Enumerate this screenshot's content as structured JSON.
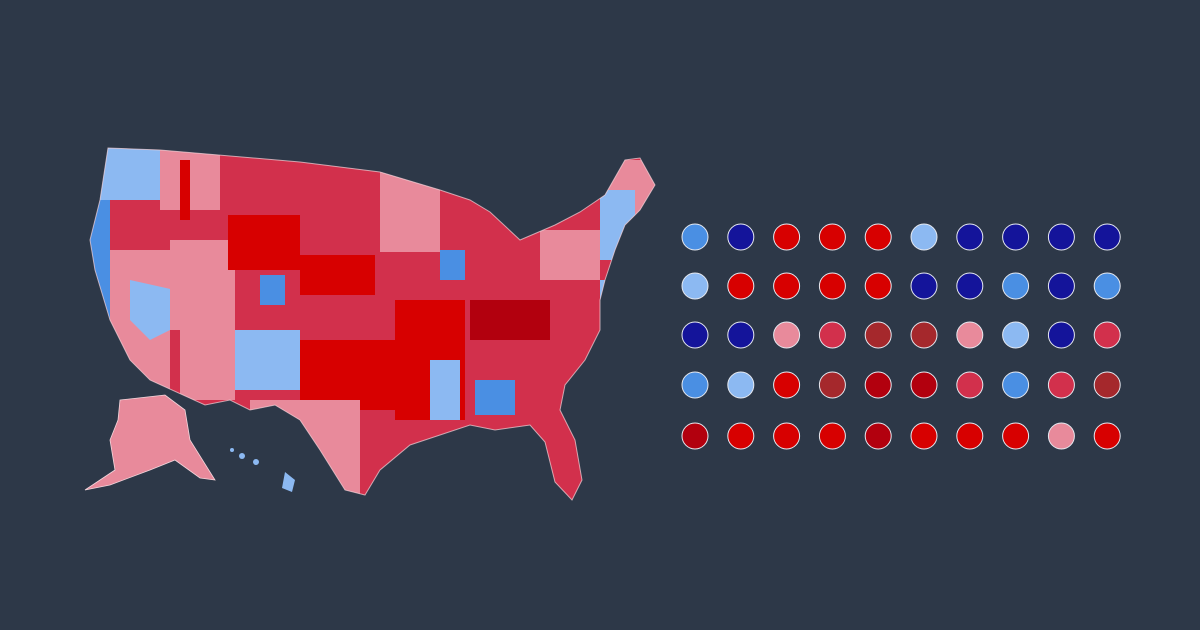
{
  "dots": {
    "rows": [
      [
        "#4a8fe3",
        "#14149a",
        "#d70000",
        "#d70000",
        "#d70000",
        "#8cb9f2",
        "#14149a",
        "#14149a",
        "#14149a",
        "#14149a"
      ],
      [
        "#8cb9f2",
        "#d70000",
        "#d70000",
        "#d70000",
        "#d70000",
        "#14149a",
        "#14149a",
        "#4a8fe3",
        "#14149a",
        "#4a8fe3"
      ],
      [
        "#14149a",
        "#14149a",
        "#e88a9b",
        "#d2304c",
        "#a5282c",
        "#a5282c",
        "#e88a9b",
        "#8cb9f2",
        "#14149a",
        "#d2304c"
      ],
      [
        "#4a8fe3",
        "#8cb9f2",
        "#d70000",
        "#a5282c",
        "#b2000e",
        "#b2000e",
        "#d2304c",
        "#4a8fe3",
        "#d2304c",
        "#a5282c"
      ],
      [
        "#b2000e",
        "#d70000",
        "#d70000",
        "#d70000",
        "#b2000e",
        "#d70000",
        "#d70000",
        "#d70000",
        "#e88a9b",
        "#d70000"
      ]
    ]
  }
}
